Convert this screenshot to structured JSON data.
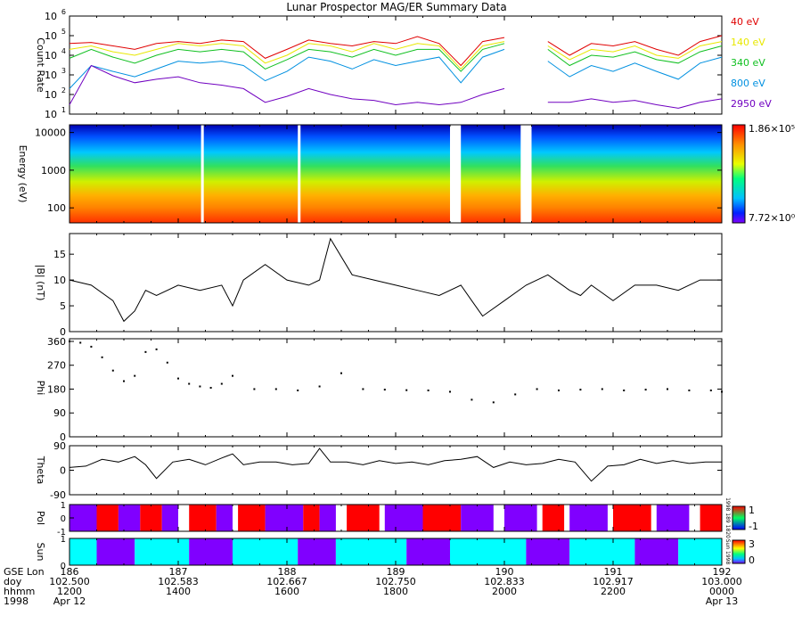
{
  "title": "Lunar Prospector MAG/ER Summary Data",
  "colors": {
    "e40": "#e00000",
    "e140": "#e8e800",
    "e340": "#10c020",
    "e800": "#0090e0",
    "e2950": "#7000c0",
    "pol_pos": "#ff0000",
    "pol_neg": "#8000ff",
    "sun_lit": "#00ffff",
    "sun_dark": "#8000ff"
  },
  "axes": {
    "count_rate": {
      "ylabel": "Count Rate"
    },
    "energy": {
      "ylabel": "Energy (eV)"
    },
    "bmag": {
      "ylabel": "|B| (nT)"
    },
    "phi": {
      "ylabel": "Phi"
    },
    "theta": {
      "ylabel": "Theta"
    },
    "pol": {
      "ylabel": "Pol",
      "side_label": "1998 189 1820"
    },
    "sun": {
      "ylabel": "Sun",
      "side_label": "Sun 1998"
    }
  },
  "x_axis": {
    "row_labels": [
      "GSE Lon",
      "doy",
      "hhmm",
      "1998"
    ],
    "ticks": [
      {
        "lon": "186",
        "doy": "102.500",
        "hhmm": "1200",
        "date": "Apr 12"
      },
      {
        "lon": "187",
        "doy": "102.583",
        "hhmm": "1400",
        "date": ""
      },
      {
        "lon": "188",
        "doy": "102.667",
        "hhmm": "1600",
        "date": ""
      },
      {
        "lon": "189",
        "doy": "102.750",
        "hhmm": "1800",
        "date": ""
      },
      {
        "lon": "190",
        "doy": "102.833",
        "hhmm": "2000",
        "date": ""
      },
      {
        "lon": "191",
        "doy": "102.917",
        "hhmm": "2200",
        "date": ""
      },
      {
        "lon": "192",
        "doy": "103.000",
        "hhmm": "0000",
        "date": "Apr 13"
      }
    ]
  },
  "chart_data": [
    {
      "type": "line",
      "panel": "count_rate",
      "y_scale": "log",
      "ylim": [
        10,
        1000000
      ],
      "yticks": [
        1,
        2,
        3,
        4,
        5,
        6
      ],
      "x_range_hours": [
        12,
        24
      ],
      "x": [
        12.0,
        12.4,
        12.8,
        13.2,
        13.6,
        14.0,
        14.4,
        14.8,
        15.2,
        15.6,
        16.0,
        16.4,
        16.8,
        17.2,
        17.6,
        18.0,
        18.4,
        18.8,
        19.2,
        19.6,
        20.0,
        20.4,
        20.8,
        21.2,
        21.6,
        22.0,
        22.4,
        22.8,
        23.2,
        23.6,
        24.0
      ],
      "gap_hours": [
        [
          19.0,
          19.2
        ],
        [
          20.3,
          20.5
        ]
      ],
      "series": [
        {
          "name": "40 eV",
          "color_key": "e40",
          "values": [
            40000,
            45000,
            30000,
            20000,
            40000,
            50000,
            40000,
            60000,
            50000,
            7000,
            20000,
            60000,
            40000,
            30000,
            50000,
            40000,
            90000,
            40000,
            3000,
            50000,
            80000,
            60000,
            50000,
            10000,
            40000,
            30000,
            50000,
            20000,
            10000,
            50000,
            100000
          ]
        },
        {
          "name": "140 eV",
          "color_key": "e140",
          "values": [
            20000,
            30000,
            15000,
            10000,
            20000,
            40000,
            30000,
            40000,
            30000,
            4000,
            10000,
            40000,
            30000,
            15000,
            40000,
            20000,
            40000,
            30000,
            2000,
            30000,
            50000,
            40000,
            30000,
            6000,
            20000,
            15000,
            30000,
            10000,
            7000,
            30000,
            50000
          ]
        },
        {
          "name": "340 eV",
          "color_key": "e340",
          "values": [
            7000,
            20000,
            8000,
            4000,
            10000,
            20000,
            15000,
            20000,
            15000,
            2000,
            6000,
            20000,
            15000,
            8000,
            20000,
            10000,
            20000,
            20000,
            1500,
            20000,
            40000,
            20000,
            20000,
            3000,
            10000,
            8000,
            15000,
            6000,
            4000,
            15000,
            30000
          ]
        },
        {
          "name": "800 eV",
          "color_key": "e800",
          "values": [
            200,
            3000,
            1500,
            800,
            2000,
            5000,
            4000,
            5000,
            3000,
            500,
            1500,
            8000,
            5000,
            2000,
            6000,
            3000,
            5000,
            8000,
            400,
            8000,
            20000,
            8000,
            5000,
            800,
            3000,
            1500,
            4000,
            1500,
            600,
            4000,
            8000
          ]
        },
        {
          "name": "2950 eV",
          "color_key": "e2950",
          "values": [
            30,
            3000,
            900,
            400,
            600,
            800,
            400,
            300,
            200,
            40,
            80,
            200,
            100,
            60,
            50,
            30,
            40,
            30,
            40,
            100,
            200,
            60,
            40,
            40,
            60,
            40,
            50,
            30,
            20,
            40,
            60
          ]
        }
      ]
    },
    {
      "type": "heatmap",
      "panel": "energy",
      "y_scale": "log",
      "ylim": [
        40,
        16000
      ],
      "ytick_labels": [
        "10000",
        "1000",
        "100"
      ],
      "ytick_values": [
        10000,
        1000,
        100
      ],
      "colorbar": {
        "max_label": "1.86×10⁵",
        "min_label": "7.72×10⁰"
      },
      "gap_hours": [
        [
          14.42,
          14.47
        ],
        [
          16.2,
          16.25
        ],
        [
          19.0,
          19.2
        ],
        [
          20.3,
          20.5
        ]
      ]
    },
    {
      "type": "line",
      "panel": "bmag",
      "ylim": [
        0,
        19
      ],
      "yticks": [
        0,
        5,
        10,
        15
      ],
      "x_range_hours": [
        12,
        24
      ],
      "x": [
        12.0,
        12.4,
        12.8,
        13.0,
        13.2,
        13.4,
        13.6,
        14.0,
        14.4,
        14.8,
        15.0,
        15.2,
        15.6,
        16.0,
        16.4,
        16.6,
        16.8,
        17.2,
        17.6,
        18.0,
        18.4,
        18.8,
        19.2,
        19.4,
        19.6,
        20.0,
        20.4,
        20.8,
        21.2,
        21.4,
        21.6,
        22.0,
        22.4,
        22.8,
        23.2,
        23.6,
        24.0
      ],
      "values": [
        10,
        9,
        6,
        2,
        4,
        8,
        7,
        9,
        8,
        9,
        5,
        10,
        13,
        10,
        9,
        10,
        18,
        11,
        10,
        9,
        8,
        7,
        9,
        6,
        3,
        6,
        9,
        11,
        8,
        7,
        9,
        6,
        9,
        9,
        8,
        10,
        10
      ]
    },
    {
      "type": "scatter",
      "panel": "phi",
      "ylim": [
        0,
        370
      ],
      "yticks": [
        0,
        90,
        180,
        270,
        360
      ],
      "x_range_hours": [
        12,
        24
      ],
      "x": [
        12.0,
        12.2,
        12.4,
        12.6,
        12.8,
        13.0,
        13.2,
        13.4,
        13.6,
        13.8,
        14.0,
        14.2,
        14.4,
        14.6,
        14.8,
        15.0,
        15.4,
        15.8,
        16.2,
        16.6,
        17.0,
        17.4,
        17.8,
        18.2,
        18.6,
        19.0,
        19.4,
        19.8,
        20.2,
        20.6,
        21.0,
        21.4,
        21.8,
        22.2,
        22.6,
        23.0,
        23.4,
        23.8,
        24.0
      ],
      "values": [
        360,
        355,
        340,
        300,
        250,
        210,
        230,
        320,
        330,
        280,
        220,
        200,
        190,
        185,
        200,
        230,
        180,
        180,
        175,
        190,
        240,
        180,
        178,
        176,
        175,
        170,
        140,
        130,
        160,
        180,
        175,
        178,
        180,
        175,
        178,
        180,
        175,
        175,
        170
      ]
    },
    {
      "type": "line",
      "panel": "theta",
      "ylim": [
        -90,
        90
      ],
      "yticks": [
        -90,
        0,
        90
      ],
      "x_range_hours": [
        12,
        24
      ],
      "x": [
        12.0,
        12.3,
        12.6,
        12.9,
        13.2,
        13.4,
        13.6,
        13.9,
        14.2,
        14.5,
        14.8,
        15.0,
        15.2,
        15.5,
        15.8,
        16.1,
        16.4,
        16.6,
        16.8,
        17.1,
        17.4,
        17.7,
        18.0,
        18.3,
        18.6,
        18.9,
        19.2,
        19.5,
        19.8,
        20.1,
        20.4,
        20.7,
        21.0,
        21.3,
        21.6,
        21.9,
        22.2,
        22.5,
        22.8,
        23.1,
        23.4,
        23.7,
        24.0
      ],
      "values": [
        10,
        15,
        40,
        30,
        50,
        20,
        -30,
        30,
        40,
        20,
        45,
        60,
        20,
        30,
        30,
        20,
        25,
        80,
        30,
        30,
        20,
        35,
        25,
        30,
        20,
        35,
        40,
        50,
        10,
        30,
        20,
        25,
        40,
        30,
        -40,
        15,
        20,
        40,
        25,
        35,
        25,
        30,
        30
      ]
    },
    {
      "type": "bar",
      "panel": "pol",
      "ylim": [
        -1,
        1
      ],
      "ytick_labels": [
        "-1",
        "0",
        "1"
      ],
      "ytick_values": [
        -1,
        0,
        1
      ],
      "colorbar": {
        "ticks": [
          "1",
          "-1"
        ]
      },
      "segments_hours": [
        [
          12.0,
          12.5,
          "neg"
        ],
        [
          12.5,
          12.9,
          "pos"
        ],
        [
          12.9,
          13.3,
          "neg"
        ],
        [
          13.3,
          13.7,
          "pos"
        ],
        [
          13.7,
          14.0,
          "neg"
        ],
        [
          14.2,
          14.7,
          "pos"
        ],
        [
          14.7,
          15.0,
          "neg"
        ],
        [
          15.1,
          15.6,
          "pos"
        ],
        [
          15.6,
          16.3,
          "neg"
        ],
        [
          16.3,
          16.6,
          "pos"
        ],
        [
          16.6,
          16.9,
          "neg"
        ],
        [
          17.1,
          17.7,
          "pos"
        ],
        [
          17.8,
          18.5,
          "neg"
        ],
        [
          18.5,
          19.2,
          "pos"
        ],
        [
          19.2,
          19.8,
          "neg"
        ],
        [
          20.0,
          20.6,
          "neg"
        ],
        [
          20.7,
          21.1,
          "pos"
        ],
        [
          21.2,
          21.9,
          "neg"
        ],
        [
          22.0,
          22.7,
          "pos"
        ],
        [
          22.8,
          23.4,
          "neg"
        ],
        [
          23.6,
          24.0,
          "pos"
        ]
      ]
    },
    {
      "type": "bar",
      "panel": "sun",
      "ylim": [
        0,
        1
      ],
      "yticks": [
        0,
        1
      ],
      "colorbar": {
        "ticks": [
          "3",
          "0"
        ]
      },
      "segments_hours": [
        [
          12.0,
          12.5,
          "lit"
        ],
        [
          12.5,
          13.2,
          "dark"
        ],
        [
          13.2,
          14.2,
          "lit"
        ],
        [
          14.2,
          15.0,
          "dark"
        ],
        [
          15.0,
          16.2,
          "lit"
        ],
        [
          16.2,
          16.9,
          "dark"
        ],
        [
          16.9,
          18.2,
          "lit"
        ],
        [
          18.2,
          19.0,
          "dark"
        ],
        [
          19.0,
          20.4,
          "lit"
        ],
        [
          20.4,
          21.2,
          "dark"
        ],
        [
          21.2,
          22.4,
          "lit"
        ],
        [
          22.4,
          23.2,
          "dark"
        ],
        [
          23.2,
          24.0,
          "lit"
        ]
      ]
    }
  ]
}
